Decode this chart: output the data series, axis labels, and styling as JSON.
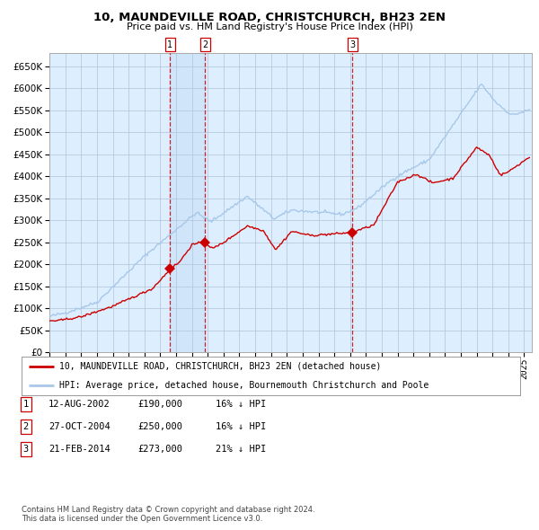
{
  "title": "10, MAUNDEVILLE ROAD, CHRISTCHURCH, BH23 2EN",
  "subtitle": "Price paid vs. HM Land Registry's House Price Index (HPI)",
  "legend_line1": "10, MAUNDEVILLE ROAD, CHRISTCHURCH, BH23 2EN (detached house)",
  "legend_line2": "HPI: Average price, detached house, Bournemouth Christchurch and Poole",
  "footer1": "Contains HM Land Registry data © Crown copyright and database right 2024.",
  "footer2": "This data is licensed under the Open Government Licence v3.0.",
  "transactions": [
    {
      "num": 1,
      "date": "12-AUG-2002",
      "price": 190000,
      "pct": "16%",
      "dir": "↓"
    },
    {
      "num": 2,
      "date": "27-OCT-2004",
      "price": 250000,
      "pct": "16%",
      "dir": "↓"
    },
    {
      "num": 3,
      "date": "21-FEB-2014",
      "price": 273000,
      "pct": "21%",
      "dir": "↓"
    }
  ],
  "transaction_dates_decimal": [
    2002.614,
    2004.822,
    2014.135
  ],
  "hpi_color": "#a8c8e8",
  "price_color": "#cc0000",
  "vline_color": "#cc0000",
  "background_color": "#ddeeff",
  "plot_bg": "#ffffff",
  "grid_color": "#b0c4d8",
  "ylim": [
    0,
    680000
  ],
  "yticks": [
    0,
    50000,
    100000,
    150000,
    200000,
    250000,
    300000,
    350000,
    400000,
    450000,
    500000,
    550000,
    600000,
    650000
  ],
  "xlim_start": 1995.0,
  "xlim_end": 2025.5
}
